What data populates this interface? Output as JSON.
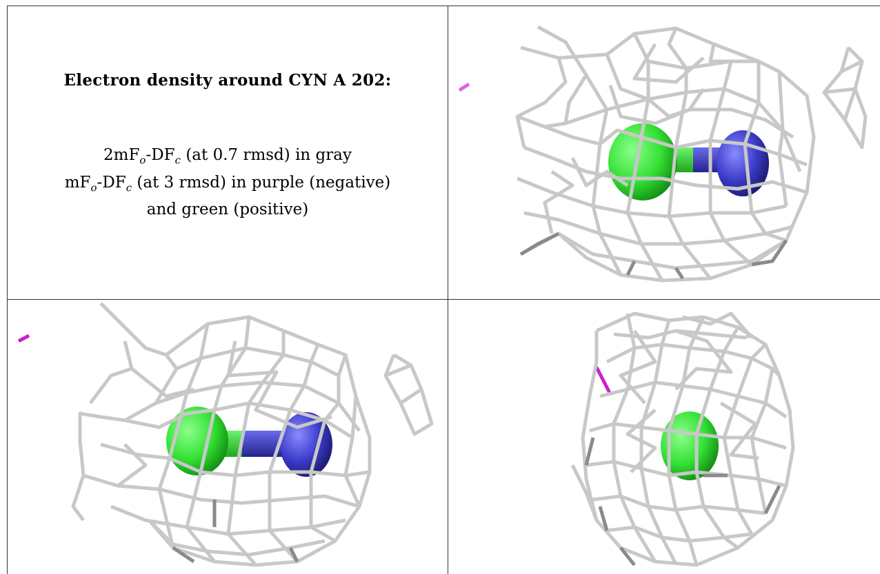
{
  "caption": {
    "title": "Electron density around CYN A 202:",
    "line1": {
      "prefix": "2mF",
      "o": "o",
      "mid": "-DF",
      "c": "c",
      "suffix": " (at 0.7 rmsd) in gray"
    },
    "line2": {
      "prefix": "mF",
      "o": "o",
      "mid": "-DF",
      "c": "c",
      "suffix": " (at 3 rmsd) in purple (negative)"
    },
    "line3": "and green (positive)"
  },
  "colors": {
    "mesh": "#c8c8c8",
    "mesh_dark": "#8a8a8a",
    "carbon_green": "#33e033",
    "nitrogen_blue": "#3a3ac8",
    "negative_purple": "#cc22cc",
    "border": "#333333"
  },
  "panels": [
    {
      "view": "top-right"
    },
    {
      "view": "bottom-left"
    },
    {
      "view": "bottom-right"
    }
  ]
}
